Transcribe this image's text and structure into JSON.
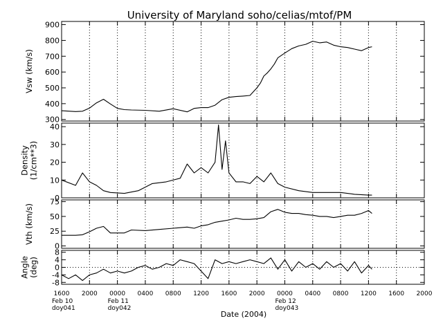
{
  "chart_data": {
    "type": "line",
    "title": "University of Maryland  soho/celias/mtof/PM",
    "xlabel": "Date (2004)",
    "x_ticks": [
      "1600",
      "2000",
      "0000",
      "0400",
      "0800",
      "1200",
      "1600",
      "2000",
      "0000",
      "0400",
      "0800",
      "1200",
      "1600",
      "2000"
    ],
    "day_labels": [
      {
        "tick_index": 0,
        "lines": [
          "Feb 10",
          "doy041"
        ]
      },
      {
        "tick_index": 2,
        "lines": [
          "Feb 11",
          "doy042"
        ]
      },
      {
        "tick_index": 8,
        "lines": [
          "Feb 12",
          "doy043"
        ]
      }
    ],
    "x_range_hours": [
      0,
      52
    ],
    "grid": "vertical dotted lines at every tick",
    "panels": [
      {
        "ylabel": [
          "Vsw (km/s)"
        ],
        "ylim": [
          290,
          920
        ],
        "yticks": [
          300,
          400,
          500,
          600,
          700,
          800,
          900
        ],
        "points": [
          [
            0,
            355
          ],
          [
            2,
            350
          ],
          [
            3,
            352
          ],
          [
            4,
            372
          ],
          [
            5,
            405
          ],
          [
            6,
            428
          ],
          [
            7,
            398
          ],
          [
            8,
            370
          ],
          [
            9,
            362
          ],
          [
            10,
            360
          ],
          [
            12,
            358
          ],
          [
            14,
            352
          ],
          [
            16,
            368
          ],
          [
            18,
            348
          ],
          [
            19,
            370
          ],
          [
            20,
            375
          ],
          [
            21,
            375
          ],
          [
            22,
            390
          ],
          [
            23,
            425
          ],
          [
            24,
            440
          ],
          [
            25,
            445
          ],
          [
            26,
            448
          ],
          [
            27,
            452
          ],
          [
            28,
            500
          ],
          [
            28.5,
            530
          ],
          [
            29,
            575
          ],
          [
            29.5,
            595
          ],
          [
            30,
            620
          ],
          [
            30.5,
            650
          ],
          [
            31,
            690
          ],
          [
            32,
            720
          ],
          [
            33,
            748
          ],
          [
            34,
            765
          ],
          [
            35,
            775
          ],
          [
            36,
            795
          ],
          [
            37,
            785
          ],
          [
            38,
            790
          ],
          [
            39,
            770
          ],
          [
            40,
            760
          ],
          [
            41,
            755
          ],
          [
            42,
            745
          ],
          [
            43,
            735
          ],
          [
            44,
            755
          ],
          [
            44.5,
            760
          ]
        ]
      },
      {
        "ylabel": [
          "Density",
          "(1/cm**3)"
        ],
        "ylim": [
          0,
          42
        ],
        "yticks": [
          0,
          10,
          20,
          30,
          40
        ],
        "points": [
          [
            0,
            10
          ],
          [
            2,
            7
          ],
          [
            3,
            14
          ],
          [
            4,
            9
          ],
          [
            5,
            7
          ],
          [
            6,
            4
          ],
          [
            7,
            3
          ],
          [
            9,
            2.5
          ],
          [
            11,
            4
          ],
          [
            13,
            8
          ],
          [
            15,
            9
          ],
          [
            17,
            11
          ],
          [
            18,
            19
          ],
          [
            19,
            14
          ],
          [
            20,
            17
          ],
          [
            21,
            14
          ],
          [
            22,
            20
          ],
          [
            22.5,
            41
          ],
          [
            23,
            16
          ],
          [
            23.5,
            32
          ],
          [
            24,
            14
          ],
          [
            25,
            9
          ],
          [
            26,
            9
          ],
          [
            27,
            8
          ],
          [
            28,
            12
          ],
          [
            29,
            9
          ],
          [
            30,
            14
          ],
          [
            31,
            8
          ],
          [
            32,
            6
          ],
          [
            34,
            4
          ],
          [
            36,
            3
          ],
          [
            38,
            3
          ],
          [
            40,
            3
          ],
          [
            42,
            2
          ],
          [
            44,
            1.5
          ],
          [
            44.5,
            1.5
          ]
        ]
      },
      {
        "ylabel": [
          "Vth (km/s)"
        ],
        "ylim": [
          -4,
          78
        ],
        "yticks": [
          0,
          25,
          50,
          75
        ],
        "tick_labels": [
          "0",
          "25",
          "50",
          "75"
        ],
        "points": [
          [
            0,
            18
          ],
          [
            2,
            18
          ],
          [
            3,
            19
          ],
          [
            4,
            24
          ],
          [
            5,
            30
          ],
          [
            6,
            33
          ],
          [
            7,
            22
          ],
          [
            9,
            22
          ],
          [
            10,
            27
          ],
          [
            12,
            26
          ],
          [
            14,
            28
          ],
          [
            16,
            30
          ],
          [
            18,
            32
          ],
          [
            19,
            30
          ],
          [
            20,
            34
          ],
          [
            21,
            36
          ],
          [
            22,
            40
          ],
          [
            23,
            42
          ],
          [
            24,
            44
          ],
          [
            25,
            47
          ],
          [
            26,
            45
          ],
          [
            27,
            45
          ],
          [
            28,
            46
          ],
          [
            29,
            48
          ],
          [
            30,
            58
          ],
          [
            31,
            62
          ],
          [
            32,
            57
          ],
          [
            33,
            55
          ],
          [
            34,
            55
          ],
          [
            35,
            53
          ],
          [
            36,
            52
          ],
          [
            37,
            50
          ],
          [
            38,
            50
          ],
          [
            39,
            48
          ],
          [
            40,
            50
          ],
          [
            41,
            52
          ],
          [
            42,
            52
          ],
          [
            43,
            55
          ],
          [
            44,
            60
          ],
          [
            44.5,
            55
          ]
        ]
      },
      {
        "ylabel": [
          "Angle",
          "(deg)"
        ],
        "ylim": [
          -9,
          9
        ],
        "yticks": [
          -8,
          -4,
          0,
          4,
          8
        ],
        "tick_labels": [
          "-8",
          "-4",
          "0",
          "4",
          "8"
        ],
        "zero_line": "dotted",
        "points": [
          [
            0,
            -4
          ],
          [
            1,
            -6
          ],
          [
            2,
            -4
          ],
          [
            3,
            -7
          ],
          [
            4,
            -4
          ],
          [
            5,
            -3
          ],
          [
            6,
            -1
          ],
          [
            7,
            -3
          ],
          [
            8,
            -2
          ],
          [
            9,
            -3
          ],
          [
            10,
            -2
          ],
          [
            11,
            0
          ],
          [
            12,
            1
          ],
          [
            13,
            -1
          ],
          [
            14,
            0
          ],
          [
            15,
            2
          ],
          [
            16,
            1
          ],
          [
            17,
            4
          ],
          [
            18,
            3
          ],
          [
            19,
            2
          ],
          [
            20,
            -2
          ],
          [
            21,
            -6
          ],
          [
            22,
            4
          ],
          [
            23,
            2
          ],
          [
            24,
            3
          ],
          [
            25,
            2
          ],
          [
            26,
            3
          ],
          [
            27,
            4
          ],
          [
            28,
            3
          ],
          [
            29,
            2
          ],
          [
            30,
            5
          ],
          [
            31,
            -1
          ],
          [
            32,
            4
          ],
          [
            33,
            -2
          ],
          [
            34,
            3
          ],
          [
            35,
            0
          ],
          [
            36,
            2
          ],
          [
            37,
            -1
          ],
          [
            38,
            3
          ],
          [
            39,
            0
          ],
          [
            40,
            2
          ],
          [
            41,
            -2
          ],
          [
            42,
            3
          ],
          [
            43,
            -3
          ],
          [
            44,
            1
          ],
          [
            44.5,
            -1
          ]
        ]
      }
    ]
  }
}
